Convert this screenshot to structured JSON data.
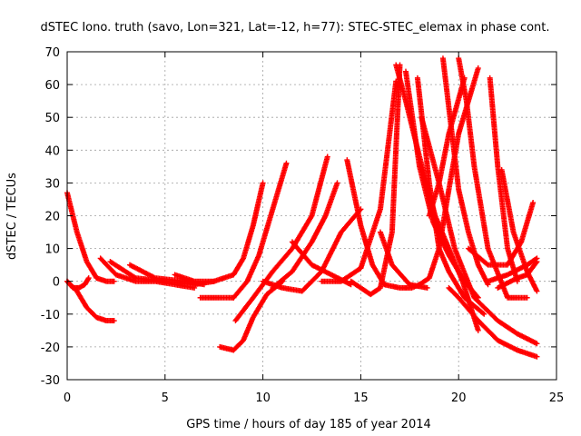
{
  "chart_data": {
    "type": "scatter",
    "title": "dSTEC Iono. truth (savo, Lon=321, Lat=-12, h=77): STEC-STEC_elemax in phase cont.",
    "xlabel": "GPS time / hours of day 185 of year 2014",
    "ylabel": "dSTEC  / TECUs",
    "xlim": [
      0,
      25
    ],
    "ylim": [
      -30,
      70
    ],
    "xticks": [
      0,
      5,
      10,
      15,
      20,
      25
    ],
    "yticks": [
      -30,
      -20,
      -10,
      0,
      10,
      20,
      30,
      40,
      50,
      60,
      70
    ],
    "grid": true,
    "marker": "plus",
    "color": "#ff0000",
    "series": [
      {
        "x": [
          0.0,
          0.5,
          1.0,
          1.5,
          2.0,
          2.4
        ],
        "y": [
          27,
          15,
          6,
          1,
          0,
          0
        ]
      },
      {
        "x": [
          0.0,
          0.5,
          1.0,
          1.5,
          2.0,
          2.4
        ],
        "y": [
          0,
          -3,
          -8,
          -11,
          -12,
          -12
        ]
      },
      {
        "x": [
          0.0,
          0.3,
          0.6,
          0.9,
          1.1
        ],
        "y": [
          0,
          -2,
          -2,
          -1,
          1
        ]
      },
      {
        "x": [
          1.7,
          2.5,
          3.5,
          4.5,
          5.5,
          6.5
        ],
        "y": [
          7,
          2,
          0,
          0,
          -1,
          -2
        ]
      },
      {
        "x": [
          2.2,
          3.5,
          5.0,
          6.5,
          7.5
        ],
        "y": [
          6,
          1,
          0,
          -1,
          0
        ]
      },
      {
        "x": [
          3.2,
          4.5,
          6.0,
          7.0
        ],
        "y": [
          5,
          1,
          0,
          -1
        ]
      },
      {
        "x": [
          5.5,
          6.5,
          7.5,
          8.5,
          9.0,
          9.5,
          10.0
        ],
        "y": [
          2,
          0,
          0,
          2,
          7,
          17,
          30
        ]
      },
      {
        "x": [
          6.8,
          7.5,
          8.5
        ],
        "y": [
          -5,
          -5,
          -5
        ]
      },
      {
        "x": [
          8.5,
          9.2,
          9.8,
          10.5,
          11.2
        ],
        "y": [
          -5,
          0,
          8,
          22,
          36
        ]
      },
      {
        "x": [
          7.8,
          8.5,
          9.0,
          9.5,
          10.2,
          11.0
        ],
        "y": [
          -20,
          -21,
          -18,
          -11,
          -4,
          0
        ]
      },
      {
        "x": [
          8.6,
          9.5,
          10.5,
          11.5,
          12.5,
          13.3
        ],
        "y": [
          -12,
          -5,
          3,
          10,
          20,
          38
        ]
      },
      {
        "x": [
          10.0,
          11.0,
          12.0,
          13.0,
          14.0,
          15.0
        ],
        "y": [
          0,
          -2,
          -3,
          3,
          15,
          22
        ]
      },
      {
        "x": [
          10.5,
          11.5,
          12.5,
          13.2,
          13.8
        ],
        "y": [
          -2,
          3,
          12,
          20,
          30
        ]
      },
      {
        "x": [
          11.5,
          12.5,
          13.5,
          14.5
        ],
        "y": [
          12,
          5,
          2,
          -1
        ]
      },
      {
        "x": [
          14.3,
          15.0,
          15.6,
          16.2,
          17.0,
          17.6,
          18.0
        ],
        "y": [
          37,
          17,
          5,
          -1,
          -2,
          -2,
          -1
        ]
      },
      {
        "x": [
          13.0,
          14.0,
          15.0,
          16.0,
          16.8
        ],
        "y": [
          0,
          0,
          4,
          22,
          61
        ]
      },
      {
        "x": [
          14.5,
          15.5,
          16.0,
          16.6,
          17.0
        ],
        "y": [
          0,
          -4,
          -2,
          15,
          66
        ]
      },
      {
        "x": [
          16.0,
          16.6,
          17.5,
          18.4
        ],
        "y": [
          15,
          5,
          -1,
          -2
        ]
      },
      {
        "x": [
          16.8,
          17.3,
          18.0,
          18.8,
          19.5,
          20.2,
          21.0
        ],
        "y": [
          66,
          55,
          38,
          20,
          10,
          0,
          -15
        ]
      },
      {
        "x": [
          17.3,
          18.0,
          18.7,
          19.5,
          20.3,
          21.0
        ],
        "y": [
          64,
          35,
          18,
          8,
          0,
          -5
        ]
      },
      {
        "x": [
          17.9,
          18.5,
          19.0,
          19.5,
          20.3,
          21.3
        ],
        "y": [
          62,
          30,
          10,
          3,
          -5,
          -10
        ]
      },
      {
        "x": [
          18.1,
          19.0,
          19.8,
          20.8,
          22.0,
          23.0,
          24.0
        ],
        "y": [
          50,
          30,
          10,
          -5,
          -12,
          -16,
          -19
        ]
      },
      {
        "x": [
          18.0,
          18.5,
          19.0,
          19.5,
          20.0,
          21.0
        ],
        "y": [
          -1,
          1,
          10,
          28,
          45,
          65
        ]
      },
      {
        "x": [
          19.2,
          19.6,
          20.0,
          20.5,
          21.0,
          21.5
        ],
        "y": [
          68,
          48,
          28,
          15,
          5,
          -1
        ]
      },
      {
        "x": [
          20.0,
          20.4,
          20.8,
          21.5,
          22.5,
          23.5
        ],
        "y": [
          68,
          55,
          35,
          10,
          -5,
          -5
        ]
      },
      {
        "x": [
          19.5,
          20.0,
          21.0,
          22.0,
          23.0,
          24.0
        ],
        "y": [
          -2,
          -5,
          -12,
          -18,
          -21,
          -23
        ]
      },
      {
        "x": [
          18.5,
          19.0,
          19.5,
          20.3
        ],
        "y": [
          20,
          30,
          45,
          62
        ]
      },
      {
        "x": [
          21.6,
          22.0,
          22.5,
          23.0
        ],
        "y": [
          62,
          35,
          10,
          0
        ]
      },
      {
        "x": [
          22.2,
          22.8,
          23.5,
          24.0
        ],
        "y": [
          34,
          15,
          3,
          -3
        ]
      },
      {
        "x": [
          21.5,
          22.5,
          23.5,
          24.0
        ],
        "y": [
          0,
          2,
          5,
          7
        ]
      },
      {
        "x": [
          22.0,
          23.0,
          23.5,
          24.0
        ],
        "y": [
          -2,
          1,
          2,
          6
        ]
      },
      {
        "x": [
          20.5,
          21.5,
          22.5,
          23.2,
          23.8
        ],
        "y": [
          10,
          5,
          5,
          12,
          24
        ]
      }
    ]
  }
}
